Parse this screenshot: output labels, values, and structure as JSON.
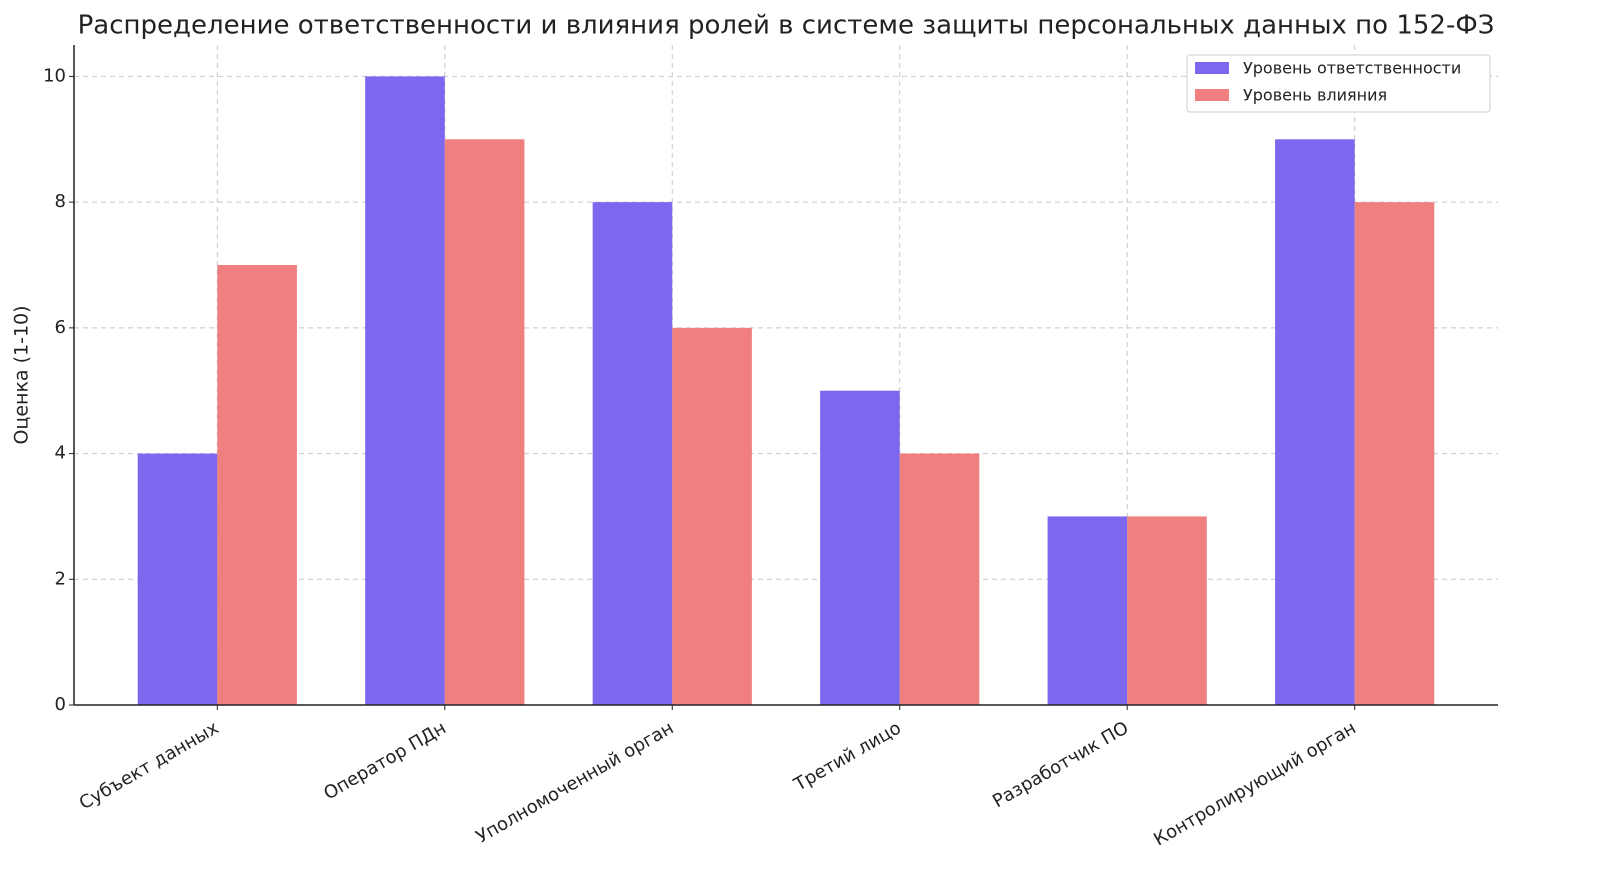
{
  "chart_data": {
    "type": "bar",
    "title": "Распределение ответственности и влияния ролей в системе защиты персональных данных по 152-ФЗ",
    "y_label": "Оценка (1-10)",
    "categories": [
      "Субъект данных",
      "Оператор ПДн",
      "Уполномоченный орган",
      "Третий лицо",
      "Разработчик ПО",
      "Контролирующий орган"
    ],
    "series": [
      {
        "name": "Уровень ответственности",
        "color": "#7b68ee",
        "values": [
          4,
          10,
          8,
          5,
          3,
          9
        ]
      },
      {
        "name": "Уровень влияния",
        "color": "#f08080",
        "values": [
          7,
          9,
          6,
          4,
          3,
          8
        ]
      }
    ],
    "ylim": [
      0,
      10.5
    ],
    "yticks": [
      0,
      2,
      4,
      6,
      8,
      10
    ],
    "grid": true,
    "legend": "upper-right"
  }
}
